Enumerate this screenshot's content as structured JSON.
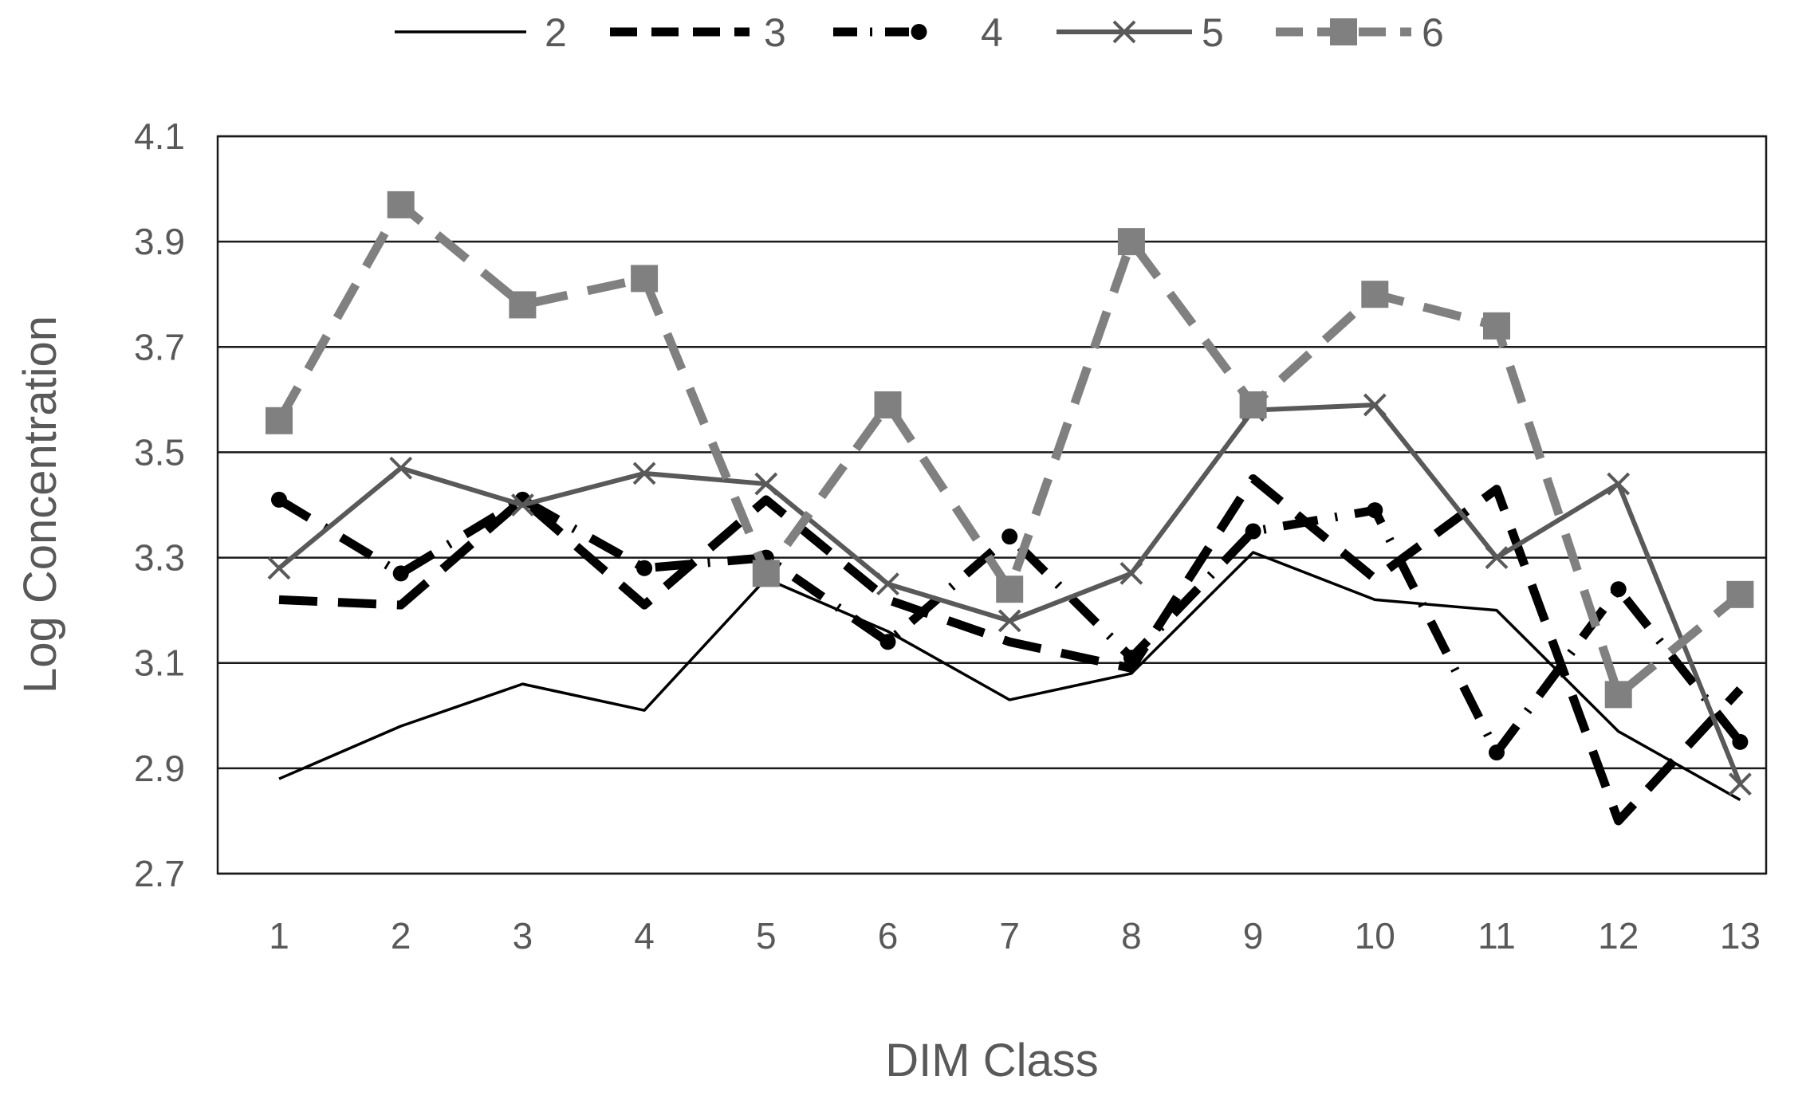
{
  "chart_data": {
    "type": "line",
    "title": "",
    "xlabel": "DIM Class",
    "ylabel": "Log Concentration",
    "categories": [
      "1",
      "2",
      "3",
      "4",
      "5",
      "6",
      "7",
      "8",
      "9",
      "10",
      "11",
      "12",
      "13"
    ],
    "ylim": [
      2.7,
      4.1
    ],
    "yticks": [
      "2.7",
      "2.9",
      "3.1",
      "3.3",
      "3.5",
      "3.7",
      "3.9",
      "4.1"
    ],
    "grid": true,
    "legend_position": "top",
    "series": [
      {
        "name": "2",
        "color": "#000000",
        "style": "thin-solid",
        "marker": "none",
        "values": [
          2.88,
          2.98,
          3.06,
          3.01,
          3.26,
          3.16,
          3.03,
          3.08,
          3.31,
          3.22,
          3.2,
          2.97,
          2.84
        ]
      },
      {
        "name": "3",
        "color": "#000000",
        "style": "dashed",
        "marker": "none",
        "values": [
          3.22,
          3.21,
          3.41,
          3.21,
          3.41,
          3.22,
          3.14,
          3.09,
          3.45,
          3.26,
          3.43,
          2.8,
          3.05
        ]
      },
      {
        "name": "4",
        "color": "#000000",
        "style": "dash-dot",
        "marker": "circle",
        "values": [
          3.41,
          3.27,
          3.41,
          3.28,
          3.3,
          3.14,
          3.34,
          3.11,
          3.35,
          3.39,
          2.93,
          3.24,
          2.95
        ]
      },
      {
        "name": "5",
        "color": "#595959",
        "style": "solid",
        "marker": "x",
        "values": [
          3.28,
          3.47,
          3.4,
          3.46,
          3.44,
          3.25,
          3.18,
          3.27,
          3.58,
          3.59,
          3.3,
          3.44,
          2.87
        ]
      },
      {
        "name": "6",
        "color": "#808080",
        "style": "dashed",
        "marker": "square",
        "values": [
          3.56,
          3.97,
          3.78,
          3.83,
          3.27,
          3.59,
          3.24,
          3.9,
          3.59,
          3.8,
          3.74,
          3.04,
          3.23
        ]
      }
    ]
  }
}
